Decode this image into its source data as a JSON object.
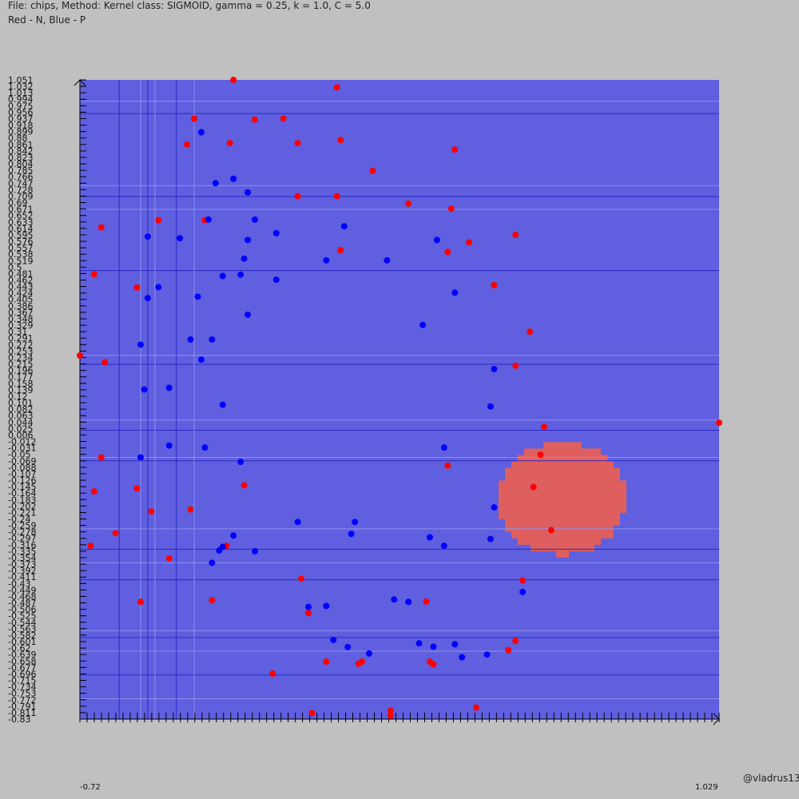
{
  "header": {
    "file_line": "File: chips, Method: Kernel class: SIGMOID, gamma = 0.25, k = 1.0, C = 5.0",
    "legend_line": "Red - N, Blue - P"
  },
  "footer": {
    "credit": "@vladrus13"
  },
  "colors": {
    "background": "#c0c0c0",
    "region_p": "#5f5fdf",
    "region_n": "#df5f5f",
    "point_n": "#ff0000",
    "point_p": "#0000ff",
    "axis": "#000000"
  },
  "chart_data": {
    "type": "scatter",
    "title": "",
    "xlabel": "",
    "ylabel": "",
    "xlim": [
      -0.72,
      1.07
    ],
    "ylim": [
      -0.83,
      1.051
    ],
    "yticks": [
      "1.051",
      "1.032",
      "1.013",
      "0.994",
      "0.975",
      "0.956",
      "0.937",
      "0.918",
      "0.899",
      "0.88",
      "0.861",
      "0.842",
      "0.823",
      "0.804",
      "0.785",
      "0.766",
      "0.747",
      "0.728",
      "0.709",
      "0.69",
      "0.671",
      "0.652",
      "0.633",
      "0.614",
      "0.595",
      "0.576",
      "0.557",
      "0.538",
      "0.519",
      "0.5",
      "0.481",
      "0.462",
      "0.443",
      "0.424",
      "0.405",
      "0.386",
      "0.367",
      "0.348",
      "0.329",
      "0.31",
      "0.291",
      "0.272",
      "0.253",
      "0.234",
      "0.215",
      "0.196",
      "0.177",
      "0.158",
      "0.139",
      "0.12",
      "0.101",
      "0.082",
      "0.063",
      "0.044",
      "0.025",
      "0.006",
      "-0.012",
      "-0.031",
      "-0.05",
      "-0.069",
      "-0.088",
      "-0.107",
      "-0.126",
      "-0.145",
      "-0.164",
      "-0.183",
      "-0.202",
      "-0.221",
      "-0.24",
      "-0.259",
      "-0.278",
      "-0.297",
      "-0.316",
      "-0.335",
      "-0.354",
      "-0.373",
      "-0.392",
      "-0.411",
      "-0.43",
      "-0.449",
      "-0.468",
      "-0.487",
      "-0.506",
      "-0.525",
      "-0.544",
      "-0.563",
      "-0.582",
      "-0.601",
      "-0.62",
      "-0.639",
      "-0.658",
      "-0.677",
      "-0.696",
      "-0.715",
      "-0.734",
      "-0.753",
      "-0.772",
      "-0.791",
      "-0.811",
      "-0.83"
    ],
    "x_tick_first": "-0.72",
    "x_tick_last": "1.029",
    "x_tick_count": 90,
    "decision_region": {
      "background_class": "P",
      "n_region": {
        "center": [
          0.63,
          -0.18
        ],
        "radius_x": 0.18,
        "radius_y": 0.165
      }
    },
    "series": [
      {
        "name": "N",
        "color": "#ff0000",
        "points": [
          [
            -0.29,
            1.051
          ],
          [
            0.0,
            1.029
          ],
          [
            -0.4,
            0.937
          ],
          [
            -0.23,
            0.934
          ],
          [
            -0.15,
            0.937
          ],
          [
            -0.42,
            0.861
          ],
          [
            -0.3,
            0.865
          ],
          [
            -0.11,
            0.865
          ],
          [
            0.01,
            0.874
          ],
          [
            0.33,
            0.846
          ],
          [
            0.1,
            0.783
          ],
          [
            -0.11,
            0.709
          ],
          [
            0.0,
            0.709
          ],
          [
            0.2,
            0.687
          ],
          [
            0.32,
            0.672
          ],
          [
            -0.66,
            0.617
          ],
          [
            -0.5,
            0.638
          ],
          [
            -0.37,
            0.638
          ],
          [
            0.37,
            0.573
          ],
          [
            0.5,
            0.595
          ],
          [
            0.01,
            0.55
          ],
          [
            0.31,
            0.545
          ],
          [
            -0.68,
            0.479
          ],
          [
            -0.56,
            0.44
          ],
          [
            0.44,
            0.447
          ],
          [
            0.54,
            0.31
          ],
          [
            -0.72,
            0.24
          ],
          [
            -0.65,
            0.22
          ],
          [
            0.5,
            0.21
          ],
          [
            0.58,
            0.03
          ],
          [
            1.07,
            0.042
          ],
          [
            0.57,
            -0.052
          ],
          [
            0.31,
            -0.084
          ],
          [
            -0.66,
            -0.06
          ],
          [
            0.55,
            -0.147
          ],
          [
            -0.68,
            -0.16
          ],
          [
            -0.56,
            -0.151
          ],
          [
            -0.26,
            -0.142
          ],
          [
            -0.52,
            -0.219
          ],
          [
            -0.62,
            -0.283
          ],
          [
            -0.41,
            -0.213
          ],
          [
            -0.69,
            -0.32
          ],
          [
            -0.31,
            -0.32
          ],
          [
            0.6,
            -0.274
          ],
          [
            -0.47,
            -0.357
          ],
          [
            0.52,
            -0.422
          ],
          [
            -0.1,
            -0.417
          ],
          [
            -0.35,
            -0.48
          ],
          [
            0.25,
            -0.484
          ],
          [
            -0.55,
            -0.485
          ],
          [
            -0.08,
            -0.518
          ],
          [
            0.5,
            -0.6
          ],
          [
            0.48,
            -0.627
          ],
          [
            0.26,
            -0.661
          ],
          [
            0.07,
            -0.661
          ],
          [
            -0.03,
            -0.661
          ],
          [
            0.06,
            -0.667
          ],
          [
            0.27,
            -0.669
          ],
          [
            -0.18,
            -0.696
          ],
          [
            0.15,
            -0.805
          ],
          [
            -0.07,
            -0.812
          ],
          [
            0.39,
            -0.796
          ],
          [
            0.15,
            -0.82
          ]
        ]
      },
      {
        "name": "P",
        "color": "#0000ff",
        "points": [
          [
            -0.38,
            0.897
          ],
          [
            -0.34,
            0.747
          ],
          [
            -0.29,
            0.76
          ],
          [
            -0.25,
            0.72
          ],
          [
            -0.36,
            0.64
          ],
          [
            -0.23,
            0.64
          ],
          [
            -0.25,
            0.58
          ],
          [
            -0.17,
            0.6
          ],
          [
            0.02,
            0.62
          ],
          [
            -0.53,
            0.59
          ],
          [
            -0.44,
            0.585
          ],
          [
            0.28,
            0.58
          ],
          [
            -0.26,
            0.525
          ],
          [
            0.14,
            0.52
          ],
          [
            -0.32,
            0.474
          ],
          [
            -0.27,
            0.478
          ],
          [
            -0.03,
            0.52
          ],
          [
            -0.17,
            0.463
          ],
          [
            0.33,
            0.425
          ],
          [
            -0.5,
            0.441
          ],
          [
            -0.39,
            0.413
          ],
          [
            -0.53,
            0.409
          ],
          [
            -0.25,
            0.36
          ],
          [
            0.24,
            0.33
          ],
          [
            -0.41,
            0.287
          ],
          [
            -0.35,
            0.287
          ],
          [
            -0.55,
            0.272
          ],
          [
            -0.38,
            0.228
          ],
          [
            0.44,
            0.2
          ],
          [
            -0.54,
            0.14
          ],
          [
            -0.47,
            0.145
          ],
          [
            0.43,
            0.09
          ],
          [
            -0.32,
            0.095
          ],
          [
            0.3,
            -0.031
          ],
          [
            -0.47,
            -0.025
          ],
          [
            -0.37,
            -0.031
          ],
          [
            -0.27,
            -0.073
          ],
          [
            -0.55,
            -0.06
          ],
          [
            0.44,
            -0.207
          ],
          [
            0.05,
            -0.25
          ],
          [
            -0.11,
            -0.25
          ],
          [
            0.04,
            -0.285
          ],
          [
            0.43,
            -0.3
          ],
          [
            0.26,
            -0.295
          ],
          [
            0.3,
            -0.32
          ],
          [
            -0.29,
            -0.29
          ],
          [
            -0.32,
            -0.323
          ],
          [
            -0.35,
            -0.37
          ],
          [
            -0.33,
            -0.334
          ],
          [
            -0.23,
            -0.336
          ],
          [
            0.52,
            -0.456
          ],
          [
            -0.08,
            -0.5
          ],
          [
            0.2,
            -0.485
          ],
          [
            -0.03,
            -0.497
          ],
          [
            0.16,
            -0.478
          ],
          [
            -0.01,
            -0.597
          ],
          [
            0.23,
            -0.607
          ],
          [
            0.27,
            -0.617
          ],
          [
            0.33,
            -0.61
          ],
          [
            0.09,
            -0.637
          ],
          [
            0.35,
            -0.648
          ],
          [
            0.42,
            -0.64
          ],
          [
            0.03,
            -0.618
          ]
        ]
      }
    ]
  }
}
